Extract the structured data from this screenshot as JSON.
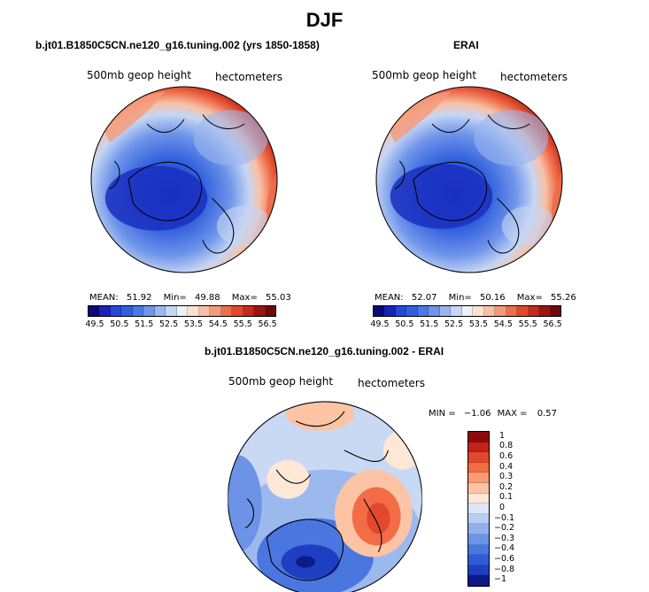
{
  "title": "DJF",
  "panels": {
    "model": {
      "header": "b.jt01.B1850C5CN.ne120_g16.tuning.002 (yrs 1850-1858)",
      "variable": "500mb geop height",
      "units": "hectometers",
      "mean_label": "MEAN:",
      "mean": "51.92",
      "min_label": "Min=",
      "min": "49.88",
      "max_label": "Max=",
      "max": "55.03"
    },
    "obs": {
      "header": "ERAI",
      "variable": "500mb geop height",
      "units": "hectometers",
      "mean_label": "MEAN:",
      "mean": "52.07",
      "min_label": "Min=",
      "min": "50.16",
      "max_label": "Max=",
      "max": "55.26"
    },
    "diff": {
      "header": "b.jt01.B1850C5CN.ne120_g16.tuning.002 - ERAI",
      "variable": "500mb geop height",
      "units": "hectometers",
      "min_label": "MIN =",
      "min": "−1.06",
      "max_label": "MAX =",
      "max": "0.57"
    }
  },
  "colorbar_abs": {
    "colors": [
      "#0a0a7a",
      "#1a22b8",
      "#2448d8",
      "#3060e0",
      "#4a78e6",
      "#6f95ea",
      "#9bb6ef",
      "#c6d6f4",
      "#eef1f7",
      "#fde2d2",
      "#f9c0a6",
      "#f49a79",
      "#ee6d4b",
      "#e2462b",
      "#c52a1c",
      "#9c1414",
      "#6a0a0a"
    ],
    "labels": [
      "49.5",
      "50.5",
      "51.5",
      "52.5",
      "53.5",
      "54.5",
      "55.5",
      "56.5"
    ]
  },
  "colorbar_diff": {
    "colors": [
      "#8c0c0c",
      "#c0231a",
      "#e2482d",
      "#f26d45",
      "#f99a73",
      "#fcc4a4",
      "#fde8d8",
      "#dde6f6",
      "#b8cdf1",
      "#91b1ec",
      "#6c93e6",
      "#4a76df",
      "#2f5bd8",
      "#1f3fc2",
      "#0c1a8a"
    ],
    "labels": [
      "1",
      "0.8",
      "0.6",
      "0.4",
      "0.3",
      "0.2",
      "0.1",
      "0",
      "−0.1",
      "−0.2",
      "−0.3",
      "−0.4",
      "−0.6",
      "−0.8",
      "−1"
    ]
  }
}
